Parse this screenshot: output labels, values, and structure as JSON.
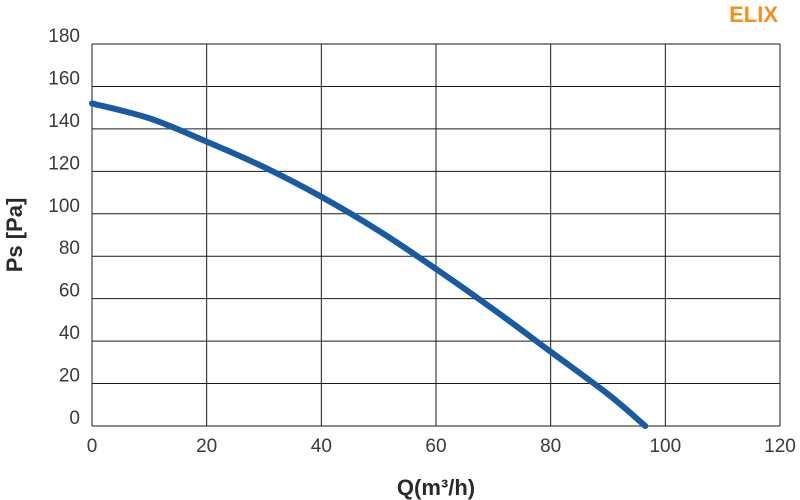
{
  "brand": {
    "label": "ELIX",
    "color": "#f0901e"
  },
  "chart_data": {
    "type": "line",
    "title": "",
    "xlabel": "Q(m³/h)",
    "ylabel": "Ps [Pa]",
    "xlim": [
      0,
      120
    ],
    "ylim": [
      0,
      180
    ],
    "xticks": [
      0,
      20,
      40,
      60,
      80,
      100,
      120
    ],
    "yticks": [
      0,
      20,
      40,
      60,
      80,
      100,
      120,
      140,
      160,
      180
    ],
    "grid": true,
    "series": [
      {
        "color": "#1a5aa0",
        "x": [
          0,
          10,
          20,
          30,
          40,
          50,
          60,
          70,
          80,
          90,
          96.5
        ],
        "y": [
          152,
          145,
          134,
          122,
          108,
          92,
          74,
          55,
          35,
          15,
          0
        ]
      }
    ]
  }
}
